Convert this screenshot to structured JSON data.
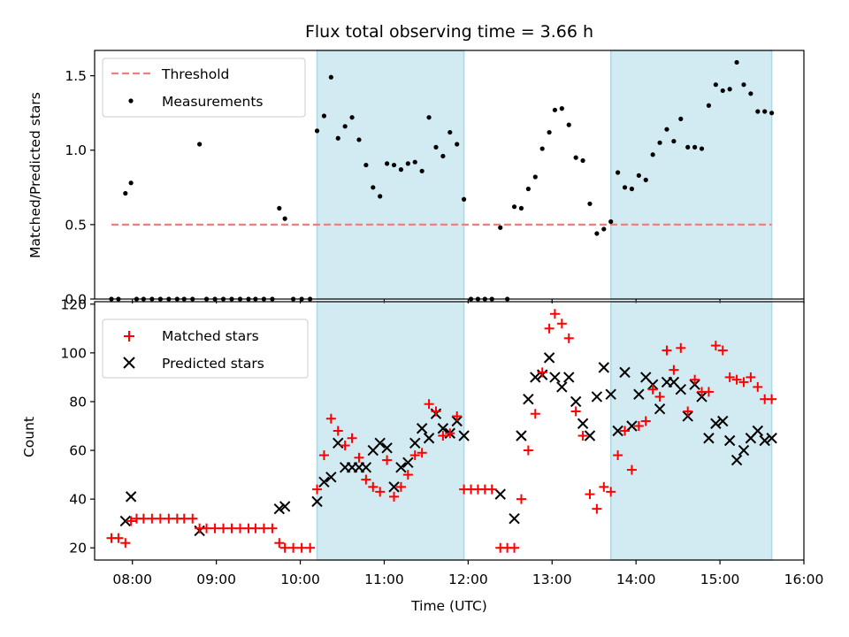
{
  "figure": {
    "title": "Flux total observing time = 3.66 h"
  },
  "colors": {
    "shade": "#add8e6",
    "threshold": "#f08080",
    "matched": "#ff0000",
    "predicted": "#000000",
    "measurement": "#000000"
  },
  "chart_data": [
    {
      "type": "scatter",
      "panel": "top",
      "ylabel": "Matched/Predicted stars",
      "xlabel": "",
      "ylim": [
        0,
        1.67
      ],
      "yticks": [
        0.0,
        0.5,
        1.0,
        1.5
      ],
      "ytick_labels": [
        "0.0",
        "0.5",
        "1.0",
        "1.5"
      ],
      "xlim": [
        "07:33",
        "16:00"
      ],
      "shaded_spans": [
        [
          "10:12",
          "11:57"
        ],
        [
          "13:42",
          "15:37"
        ]
      ],
      "threshold": {
        "value": 0.5,
        "x_range": [
          "07:45",
          "15:37"
        ]
      },
      "legend": [
        "Threshold",
        "Measurements"
      ],
      "legend_loc": "upper left",
      "series": [
        {
          "name": "Measurements",
          "points": [
            [
              "07:45",
              0
            ],
            [
              "07:50",
              0
            ],
            [
              "07:55",
              0.71
            ],
            [
              "07:59",
              0.78
            ],
            [
              "08:03",
              0
            ],
            [
              "08:08",
              0
            ],
            [
              "08:14",
              0
            ],
            [
              "08:20",
              0
            ],
            [
              "08:26",
              0
            ],
            [
              "08:32",
              0
            ],
            [
              "08:37",
              0
            ],
            [
              "08:43",
              0
            ],
            [
              "08:48",
              1.04
            ],
            [
              "08:53",
              0
            ],
            [
              "08:59",
              0
            ],
            [
              "09:05",
              0
            ],
            [
              "09:11",
              0
            ],
            [
              "09:17",
              0
            ],
            [
              "09:23",
              0
            ],
            [
              "09:28",
              0
            ],
            [
              "09:34",
              0
            ],
            [
              "09:40",
              0
            ],
            [
              "09:45",
              0.61
            ],
            [
              "09:49",
              0.54
            ],
            [
              "09:55",
              0
            ],
            [
              "10:01",
              0
            ],
            [
              "10:07",
              0
            ],
            [
              "10:12",
              1.13
            ],
            [
              "10:17",
              1.23
            ],
            [
              "10:22",
              1.49
            ],
            [
              "10:27",
              1.08
            ],
            [
              "10:32",
              1.16
            ],
            [
              "10:37",
              1.22
            ],
            [
              "10:42",
              1.07
            ],
            [
              "10:47",
              0.9
            ],
            [
              "10:52",
              0.75
            ],
            [
              "10:57",
              0.69
            ],
            [
              "11:02",
              0.91
            ],
            [
              "11:07",
              0.9
            ],
            [
              "11:12",
              0.87
            ],
            [
              "11:17",
              0.91
            ],
            [
              "11:22",
              0.92
            ],
            [
              "11:27",
              0.86
            ],
            [
              "11:32",
              1.22
            ],
            [
              "11:37",
              1.02
            ],
            [
              "11:42",
              0.96
            ],
            [
              "11:47",
              1.12
            ],
            [
              "11:52",
              1.04
            ],
            [
              "11:57",
              0.67
            ],
            [
              "12:02",
              0
            ],
            [
              "12:07",
              0
            ],
            [
              "12:12",
              0
            ],
            [
              "12:17",
              0
            ],
            [
              "12:23",
              0.48
            ],
            [
              "12:28",
              0
            ],
            [
              "12:33",
              0.62
            ],
            [
              "12:38",
              0.61
            ],
            [
              "12:43",
              0.74
            ],
            [
              "12:48",
              0.82
            ],
            [
              "12:53",
              1.01
            ],
            [
              "12:58",
              1.12
            ],
            [
              "13:02",
              1.27
            ],
            [
              "13:07",
              1.28
            ],
            [
              "13:12",
              1.17
            ],
            [
              "13:17",
              0.95
            ],
            [
              "13:22",
              0.93
            ],
            [
              "13:27",
              0.64
            ],
            [
              "13:32",
              0.44
            ],
            [
              "13:37",
              0.47
            ],
            [
              "13:42",
              0.52
            ],
            [
              "13:47",
              0.85
            ],
            [
              "13:52",
              0.75
            ],
            [
              "13:57",
              0.74
            ],
            [
              "14:02",
              0.83
            ],
            [
              "14:07",
              0.8
            ],
            [
              "14:12",
              0.97
            ],
            [
              "14:17",
              1.05
            ],
            [
              "14:22",
              1.14
            ],
            [
              "14:27",
              1.06
            ],
            [
              "14:32",
              1.21
            ],
            [
              "14:37",
              1.02
            ],
            [
              "14:42",
              1.02
            ],
            [
              "14:47",
              1.01
            ],
            [
              "14:52",
              1.3
            ],
            [
              "14:57",
              1.44
            ],
            [
              "15:02",
              1.4
            ],
            [
              "15:07",
              1.41
            ],
            [
              "15:12",
              1.59
            ],
            [
              "15:17",
              1.44
            ],
            [
              "15:22",
              1.38
            ],
            [
              "15:27",
              1.26
            ],
            [
              "15:32",
              1.26
            ],
            [
              "15:37",
              1.25
            ]
          ]
        }
      ]
    },
    {
      "type": "scatter",
      "panel": "bottom",
      "ylabel": "Count",
      "xlabel": "Time (UTC)",
      "ylim": [
        15,
        121
      ],
      "yticks": [
        20,
        40,
        60,
        80,
        100,
        120
      ],
      "ytick_labels": [
        "20",
        "40",
        "60",
        "80",
        "100",
        "120"
      ],
      "xlim": [
        "07:33",
        "16:00"
      ],
      "xticks": [
        "08:00",
        "09:00",
        "10:00",
        "11:00",
        "12:00",
        "13:00",
        "14:00",
        "15:00",
        "16:00"
      ],
      "shaded_spans": [
        [
          "10:12",
          "11:57"
        ],
        [
          "13:42",
          "15:37"
        ]
      ],
      "legend": [
        "Matched stars",
        "Predicted stars"
      ],
      "legend_loc": "upper left",
      "series": [
        {
          "name": "Matched stars",
          "marker": "plus",
          "points": [
            [
              "07:45",
              24
            ],
            [
              "07:50",
              24
            ],
            [
              "07:55",
              22
            ],
            [
              "07:59",
              31
            ],
            [
              "08:03",
              32
            ],
            [
              "08:08",
              32
            ],
            [
              "08:14",
              32
            ],
            [
              "08:20",
              32
            ],
            [
              "08:26",
              32
            ],
            [
              "08:32",
              32
            ],
            [
              "08:37",
              32
            ],
            [
              "08:43",
              32
            ],
            [
              "08:48",
              28
            ],
            [
              "08:53",
              28
            ],
            [
              "08:59",
              28
            ],
            [
              "09:05",
              28
            ],
            [
              "09:11",
              28
            ],
            [
              "09:17",
              28
            ],
            [
              "09:23",
              28
            ],
            [
              "09:28",
              28
            ],
            [
              "09:34",
              28
            ],
            [
              "09:40",
              28
            ],
            [
              "09:45",
              22
            ],
            [
              "09:49",
              20
            ],
            [
              "09:55",
              20
            ],
            [
              "10:01",
              20
            ],
            [
              "10:07",
              20
            ],
            [
              "10:12",
              44
            ],
            [
              "10:17",
              58
            ],
            [
              "10:22",
              73
            ],
            [
              "10:27",
              68
            ],
            [
              "10:32",
              62
            ],
            [
              "10:37",
              65
            ],
            [
              "10:42",
              57
            ],
            [
              "10:47",
              48
            ],
            [
              "10:52",
              45
            ],
            [
              "10:57",
              43
            ],
            [
              "11:02",
              56
            ],
            [
              "11:07",
              41
            ],
            [
              "11:12",
              45
            ],
            [
              "11:17",
              50
            ],
            [
              "11:22",
              58
            ],
            [
              "11:27",
              59
            ],
            [
              "11:32",
              79
            ],
            [
              "11:37",
              76
            ],
            [
              "11:42",
              66
            ],
            [
              "11:47",
              67
            ],
            [
              "11:52",
              74
            ],
            [
              "11:57",
              44
            ],
            [
              "12:02",
              44
            ],
            [
              "12:07",
              44
            ],
            [
              "12:12",
              44
            ],
            [
              "12:17",
              44
            ],
            [
              "12:23",
              20
            ],
            [
              "12:28",
              20
            ],
            [
              "12:33",
              20
            ],
            [
              "12:38",
              40
            ],
            [
              "12:43",
              60
            ],
            [
              "12:48",
              75
            ],
            [
              "12:53",
              92
            ],
            [
              "12:58",
              110
            ],
            [
              "13:02",
              116
            ],
            [
              "13:07",
              112
            ],
            [
              "13:12",
              106
            ],
            [
              "13:17",
              76
            ],
            [
              "13:22",
              66
            ],
            [
              "13:27",
              42
            ],
            [
              "13:32",
              36
            ],
            [
              "13:37",
              45
            ],
            [
              "13:42",
              43
            ],
            [
              "13:47",
              58
            ],
            [
              "13:52",
              68
            ],
            [
              "13:57",
              52
            ],
            [
              "14:02",
              70
            ],
            [
              "14:07",
              72
            ],
            [
              "14:12",
              85
            ],
            [
              "14:17",
              82
            ],
            [
              "14:22",
              101
            ],
            [
              "14:27",
              93
            ],
            [
              "14:32",
              102
            ],
            [
              "14:37",
              76
            ],
            [
              "14:42",
              89
            ],
            [
              "14:47",
              84
            ],
            [
              "14:52",
              84
            ],
            [
              "14:57",
              103
            ],
            [
              "15:02",
              101
            ],
            [
              "15:07",
              90
            ],
            [
              "15:12",
              89
            ],
            [
              "15:17",
              88
            ],
            [
              "15:22",
              90
            ],
            [
              "15:27",
              86
            ],
            [
              "15:32",
              81
            ],
            [
              "15:37",
              81
            ]
          ]
        },
        {
          "name": "Predicted stars",
          "marker": "x",
          "points": [
            [
              "07:55",
              31
            ],
            [
              "07:59",
              41
            ],
            [
              "08:48",
              27
            ],
            [
              "09:45",
              36
            ],
            [
              "09:49",
              37
            ],
            [
              "10:12",
              39
            ],
            [
              "10:17",
              47
            ],
            [
              "10:22",
              49
            ],
            [
              "10:27",
              63
            ],
            [
              "10:32",
              53
            ],
            [
              "10:37",
              53
            ],
            [
              "10:42",
              53
            ],
            [
              "10:47",
              53
            ],
            [
              "10:52",
              60
            ],
            [
              "10:57",
              63
            ],
            [
              "11:02",
              61
            ],
            [
              "11:07",
              45
            ],
            [
              "11:12",
              53
            ],
            [
              "11:17",
              55
            ],
            [
              "11:22",
              63
            ],
            [
              "11:27",
              69
            ],
            [
              "11:32",
              65
            ],
            [
              "11:37",
              75
            ],
            [
              "11:42",
              69
            ],
            [
              "11:47",
              67
            ],
            [
              "11:52",
              72
            ],
            [
              "11:57",
              66
            ],
            [
              "12:23",
              42
            ],
            [
              "12:33",
              32
            ],
            [
              "12:38",
              66
            ],
            [
              "12:43",
              81
            ],
            [
              "12:48",
              90
            ],
            [
              "12:53",
              91
            ],
            [
              "12:58",
              98
            ],
            [
              "13:02",
              90
            ],
            [
              "13:07",
              86
            ],
            [
              "13:12",
              90
            ],
            [
              "13:17",
              80
            ],
            [
              "13:22",
              71
            ],
            [
              "13:27",
              66
            ],
            [
              "13:32",
              82
            ],
            [
              "13:37",
              94
            ],
            [
              "13:42",
              83
            ],
            [
              "13:47",
              68
            ],
            [
              "13:52",
              92
            ],
            [
              "13:57",
              70
            ],
            [
              "14:02",
              83
            ],
            [
              "14:07",
              90
            ],
            [
              "14:12",
              87
            ],
            [
              "14:17",
              77
            ],
            [
              "14:22",
              88
            ],
            [
              "14:27",
              88
            ],
            [
              "14:32",
              85
            ],
            [
              "14:37",
              74
            ],
            [
              "14:42",
              87
            ],
            [
              "14:47",
              82
            ],
            [
              "14:52",
              65
            ],
            [
              "14:57",
              71
            ],
            [
              "15:02",
              72
            ],
            [
              "15:07",
              64
            ],
            [
              "15:12",
              56
            ],
            [
              "15:17",
              60
            ],
            [
              "15:22",
              65
            ],
            [
              "15:27",
              68
            ],
            [
              "15:32",
              64
            ],
            [
              "15:37",
              65
            ]
          ]
        }
      ]
    }
  ]
}
